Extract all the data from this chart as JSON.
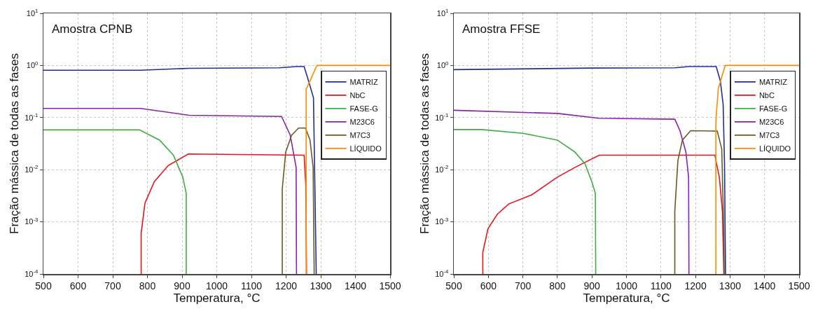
{
  "chart_data": [
    {
      "type": "line",
      "title": "Amostra CPNB",
      "xlabel": "Temperatura, °C",
      "ylabel": "Fração mássica de todas as fases",
      "log": "y",
      "grid": true,
      "legend": "right",
      "marker": "none",
      "line_style": "solid",
      "xlim": [
        500,
        1500
      ],
      "xticks": [
        500,
        600,
        700,
        800,
        900,
        1000,
        1100,
        1200,
        1300,
        1400,
        1500
      ],
      "ylim": [
        0.0001,
        10
      ],
      "yticks": [
        {
          "value": 0.0001,
          "label": "10$^{-4}$"
        },
        {
          "value": 0.001,
          "label": "10$^{-3}$"
        },
        {
          "value": 0.01,
          "label": "10$^{-2}$"
        },
        {
          "value": 0.1,
          "label": "10$^{-1}$"
        },
        {
          "value": 1,
          "label": "10$^{0}$"
        },
        {
          "value": 10,
          "label": "10$^{1}$"
        }
      ],
      "series": [
        {
          "name": "MATRIZ",
          "color": "#1f2f8f",
          "x": [
            500,
            780,
            920,
            1180,
            1230,
            1252,
            1265,
            1279,
            1287
          ],
          "values": [
            0.81,
            0.81,
            0.88,
            0.9,
            0.95,
            0.95,
            0.5,
            0.24,
            0.0001
          ]
        },
        {
          "name": "NbC",
          "color": "#e8141c",
          "x": [
            782,
            782,
            793,
            820,
            860,
            918,
            1252,
            1257,
            1259
          ],
          "values": [
            0.0001,
            0.0006,
            0.0023,
            0.0059,
            0.012,
            0.02,
            0.019,
            0.005,
            0.0001
          ]
        },
        {
          "name": "FASE-G",
          "color": "#3fae3f",
          "x": [
            500,
            777,
            835,
            875,
            902,
            912,
            912
          ],
          "values": [
            0.058,
            0.058,
            0.037,
            0.019,
            0.0072,
            0.0035,
            0.0001
          ]
        },
        {
          "name": "M23C6",
          "color": "#8a22a8",
          "x": [
            500,
            780,
            920,
            1187,
            1212,
            1229,
            1230
          ],
          "values": [
            0.15,
            0.15,
            0.111,
            0.105,
            0.046,
            0.011,
            0.0001
          ]
        },
        {
          "name": "M7C3",
          "color": "#6b5a24",
          "x": [
            1189,
            1189,
            1199,
            1216,
            1236,
            1256,
            1269,
            1278,
            1281
          ],
          "values": [
            0.0001,
            0.0043,
            0.022,
            0.046,
            0.063,
            0.063,
            0.037,
            0.011,
            0.0001
          ]
        },
        {
          "name": "LÍQUIDO",
          "color": "#ff8c00",
          "x": [
            1258,
            1258,
            1289,
            1500
          ],
          "values": [
            0.0001,
            0.35,
            1.0,
            1.0
          ]
        }
      ]
    },
    {
      "type": "line",
      "title": "Amostra FFSE",
      "xlabel": "Temperatura, °C",
      "ylabel": "Fração mássica de todas as fases",
      "log": "y",
      "grid": true,
      "legend": "right",
      "marker": "none",
      "line_style": "solid",
      "xlim": [
        500,
        1500
      ],
      "xticks": [
        500,
        600,
        700,
        800,
        900,
        1000,
        1100,
        1200,
        1300,
        1400,
        1500
      ],
      "ylim": [
        0.0001,
        10
      ],
      "yticks": [
        {
          "value": 0.0001,
          "label": "10$^{-4}$"
        },
        {
          "value": 0.001,
          "label": "10$^{-3}$"
        },
        {
          "value": 0.01,
          "label": "10$^{-2}$"
        },
        {
          "value": 0.1,
          "label": "10$^{-1}$"
        },
        {
          "value": 1,
          "label": "10$^{0}$"
        },
        {
          "value": 10,
          "label": "10$^{1}$"
        }
      ],
      "series": [
        {
          "name": "MATRIZ",
          "color": "#1f2f8f",
          "x": [
            500,
            900,
            1140,
            1180,
            1260,
            1272,
            1280,
            1284,
            1287
          ],
          "values": [
            0.83,
            0.89,
            0.9,
            0.95,
            0.95,
            0.5,
            0.18,
            0.013,
            0.0001
          ]
        },
        {
          "name": "NbC",
          "color": "#e8141c",
          "x": [
            584,
            584,
            599,
            626,
            659,
            726,
            800,
            850,
            921,
            1256,
            1269,
            1278,
            1282
          ],
          "values": [
            0.0001,
            0.00026,
            0.00074,
            0.0014,
            0.0022,
            0.0033,
            0.0072,
            0.011,
            0.019,
            0.019,
            0.0072,
            0.0016,
            0.0001
          ]
        },
        {
          "name": "FASE-G",
          "color": "#3fae3f",
          "x": [
            500,
            580,
            700,
            800,
            850,
            880,
            900,
            910,
            911
          ],
          "values": [
            0.059,
            0.059,
            0.05,
            0.037,
            0.022,
            0.013,
            0.0058,
            0.0035,
            0.0001
          ]
        },
        {
          "name": "M23C6",
          "color": "#8a22a8",
          "x": [
            500,
            800,
            920,
            1140,
            1155,
            1172,
            1180,
            1181
          ],
          "values": [
            0.138,
            0.12,
            0.097,
            0.093,
            0.056,
            0.022,
            0.0072,
            0.0001
          ]
        },
        {
          "name": "M7C3",
          "color": "#6b5a24",
          "x": [
            1140,
            1140,
            1149,
            1162,
            1186,
            1263,
            1276,
            1282,
            1283
          ],
          "values": [
            0.0001,
            0.0016,
            0.015,
            0.037,
            0.056,
            0.055,
            0.025,
            0.00058,
            0.0001
          ]
        },
        {
          "name": "LÍQUIDO",
          "color": "#ff8c00",
          "x": [
            1259,
            1259,
            1266,
            1286,
            1500
          ],
          "values": [
            0.0001,
            0.085,
            0.36,
            1.0,
            1.0
          ]
        }
      ]
    }
  ]
}
